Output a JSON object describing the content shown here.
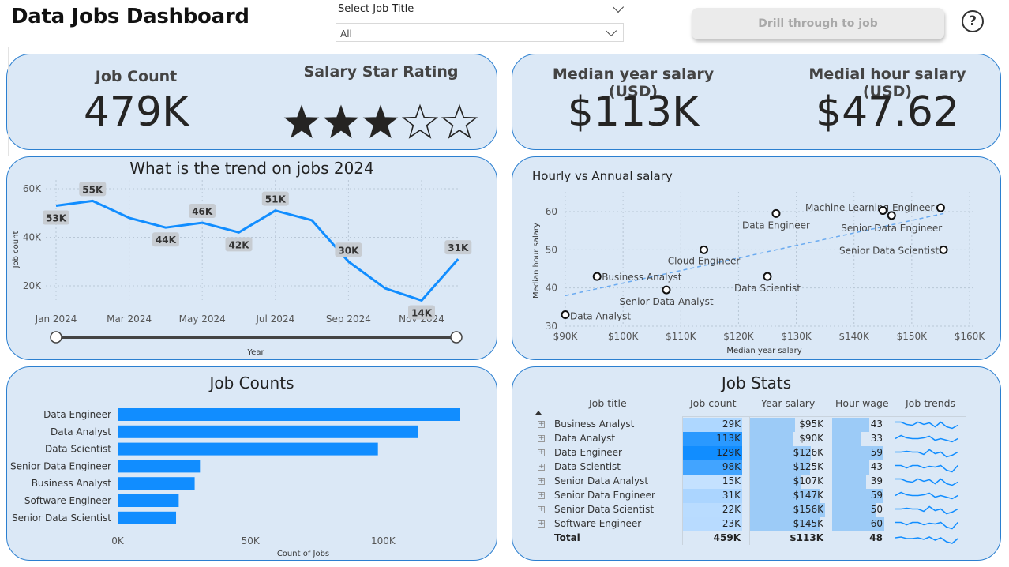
{
  "header": {
    "title": "Data Jobs Dashboard",
    "slicer_label": "Select Job Title",
    "slicer_value": "All",
    "drill_button": "Drill through to job",
    "help_icon": "?"
  },
  "kpis": {
    "job_count_label": "Job Count",
    "job_count_value": "479K",
    "star_label": "Salary Star Rating",
    "stars_filled": 3,
    "stars_total": 5,
    "median_year_label": "Median year salary (USD)",
    "median_year_value": "$113K",
    "median_hour_label": "Medial hour salary (USD)",
    "median_hour_value": "$47.62"
  },
  "trend": {
    "title": "What is the trend on jobs 2024",
    "ylabel": "Job count",
    "xlabel": "Year",
    "y_ticks": [
      "20K",
      "40K",
      "60K"
    ],
    "x_ticks": [
      "Jan 2024",
      "Mar 2024",
      "May 2024",
      "Jul 2024",
      "Sep 2024",
      "Nov 2024"
    ],
    "slider_range": [
      0,
      1
    ]
  },
  "scatter": {
    "title": "Hourly vs Annual salary",
    "xlabel": "Median year salary",
    "ylabel": "Median hour salary",
    "x_ticks": [
      "$90K",
      "$100K",
      "$110K",
      "$120K",
      "$130K",
      "$140K",
      "$150K",
      "$160K"
    ],
    "y_ticks": [
      "30",
      "40",
      "50",
      "60"
    ]
  },
  "job_counts": {
    "title": "Job Counts",
    "xlabel": "Count of Jobs",
    "x_ticks": [
      "0K",
      "50K",
      "100K"
    ]
  },
  "job_stats": {
    "title": "Job Stats",
    "columns": [
      "Job title",
      "Job count",
      "Year salary",
      "Hour wage",
      "Job trends"
    ],
    "rows": [
      {
        "title": "Business Analyst",
        "count": "29K",
        "salary": "$95K",
        "wage": "43",
        "count_v": 29,
        "salary_v": 95,
        "wage_v": 43
      },
      {
        "title": "Data Analyst",
        "count": "113K",
        "salary": "$90K",
        "wage": "33",
        "count_v": 113,
        "salary_v": 90,
        "wage_v": 33
      },
      {
        "title": "Data Engineer",
        "count": "129K",
        "salary": "$126K",
        "wage": "59",
        "count_v": 129,
        "salary_v": 126,
        "wage_v": 59
      },
      {
        "title": "Data Scientist",
        "count": "98K",
        "salary": "$125K",
        "wage": "43",
        "count_v": 98,
        "salary_v": 125,
        "wage_v": 43
      },
      {
        "title": "Senior Data Analyst",
        "count": "15K",
        "salary": "$107K",
        "wage": "39",
        "count_v": 15,
        "salary_v": 107,
        "wage_v": 39
      },
      {
        "title": "Senior Data Engineer",
        "count": "31K",
        "salary": "$147K",
        "wage": "59",
        "count_v": 31,
        "salary_v": 147,
        "wage_v": 59
      },
      {
        "title": "Senior Data Scientist",
        "count": "22K",
        "salary": "$156K",
        "wage": "50",
        "count_v": 22,
        "salary_v": 156,
        "wage_v": 50
      },
      {
        "title": "Software Engineer",
        "count": "23K",
        "salary": "$145K",
        "wage": "60",
        "count_v": 23,
        "salary_v": 145,
        "wage_v": 60
      }
    ],
    "total": {
      "label": "Total",
      "count": "459K",
      "salary": "$113K",
      "wage": "48"
    }
  },
  "colors": {
    "accent": "#118dff",
    "card_bg": "#dbe8f6",
    "card_border": "#2b7fd0"
  },
  "chart_data": [
    {
      "type": "line",
      "title": "What is the trend on jobs 2024",
      "xlabel": "Year",
      "ylabel": "Job count",
      "x": [
        "Jan 2024",
        "Feb 2024",
        "Mar 2024",
        "Apr 2024",
        "May 2024",
        "Jun 2024",
        "Jul 2024",
        "Aug 2024",
        "Sep 2024",
        "Oct 2024",
        "Nov 2024",
        "Dec 2024"
      ],
      "series": [
        {
          "values": [
            53,
            55,
            48,
            44,
            46,
            42,
            51,
            47,
            30,
            19,
            14,
            31
          ]
        }
      ],
      "labels": [
        "53K",
        "55K",
        null,
        "44K",
        "46K",
        "42K",
        "51K",
        null,
        "30K",
        null,
        "14K",
        "31K"
      ],
      "ylim": [
        15,
        62
      ],
      "unit": "K",
      "grid": true
    },
    {
      "type": "scatter",
      "title": "Hourly vs Annual salary",
      "xlabel": "Median year salary",
      "ylabel": "Median hour salary",
      "xlim": [
        90,
        160
      ],
      "ylim": [
        27,
        66
      ],
      "points": [
        {
          "label": "Data Analyst",
          "x": 90,
          "y": 33
        },
        {
          "label": "Business Analyst",
          "x": 95.5,
          "y": 43
        },
        {
          "label": "Senior Data Analyst",
          "x": 107.5,
          "y": 39.5
        },
        {
          "label": "Cloud Engineer",
          "x": 114,
          "y": 50
        },
        {
          "label": "Data Scientist",
          "x": 125,
          "y": 43
        },
        {
          "label": "Data Engineer",
          "x": 126.5,
          "y": 59.5
        },
        {
          "label": "Machine Learning Engineer",
          "x": 155,
          "y": 61
        },
        {
          "label": "Senior Data Engineer",
          "x": 146.5,
          "y": 59
        },
        {
          "label": "Senior Data Scientist",
          "x": 155.5,
          "y": 50
        },
        {
          "label": "",
          "x": 145,
          "y": 60.3
        }
      ],
      "trendline": {
        "from": [
          90,
          38
        ],
        "to": [
          155.5,
          59.5
        ]
      },
      "grid": true
    },
    {
      "type": "bar",
      "orientation": "horizontal",
      "title": "Job Counts",
      "xlabel": "Count of Jobs",
      "categories": [
        "Data Engineer",
        "Data Analyst",
        "Data Scientist",
        "Senior Data Engineer",
        "Business Analyst",
        "Software Engineer",
        "Senior Data Scientist"
      ],
      "values": [
        129,
        113,
        98,
        31,
        29,
        23,
        22
      ],
      "unit": "K",
      "xlim": [
        0,
        135
      ]
    }
  ]
}
